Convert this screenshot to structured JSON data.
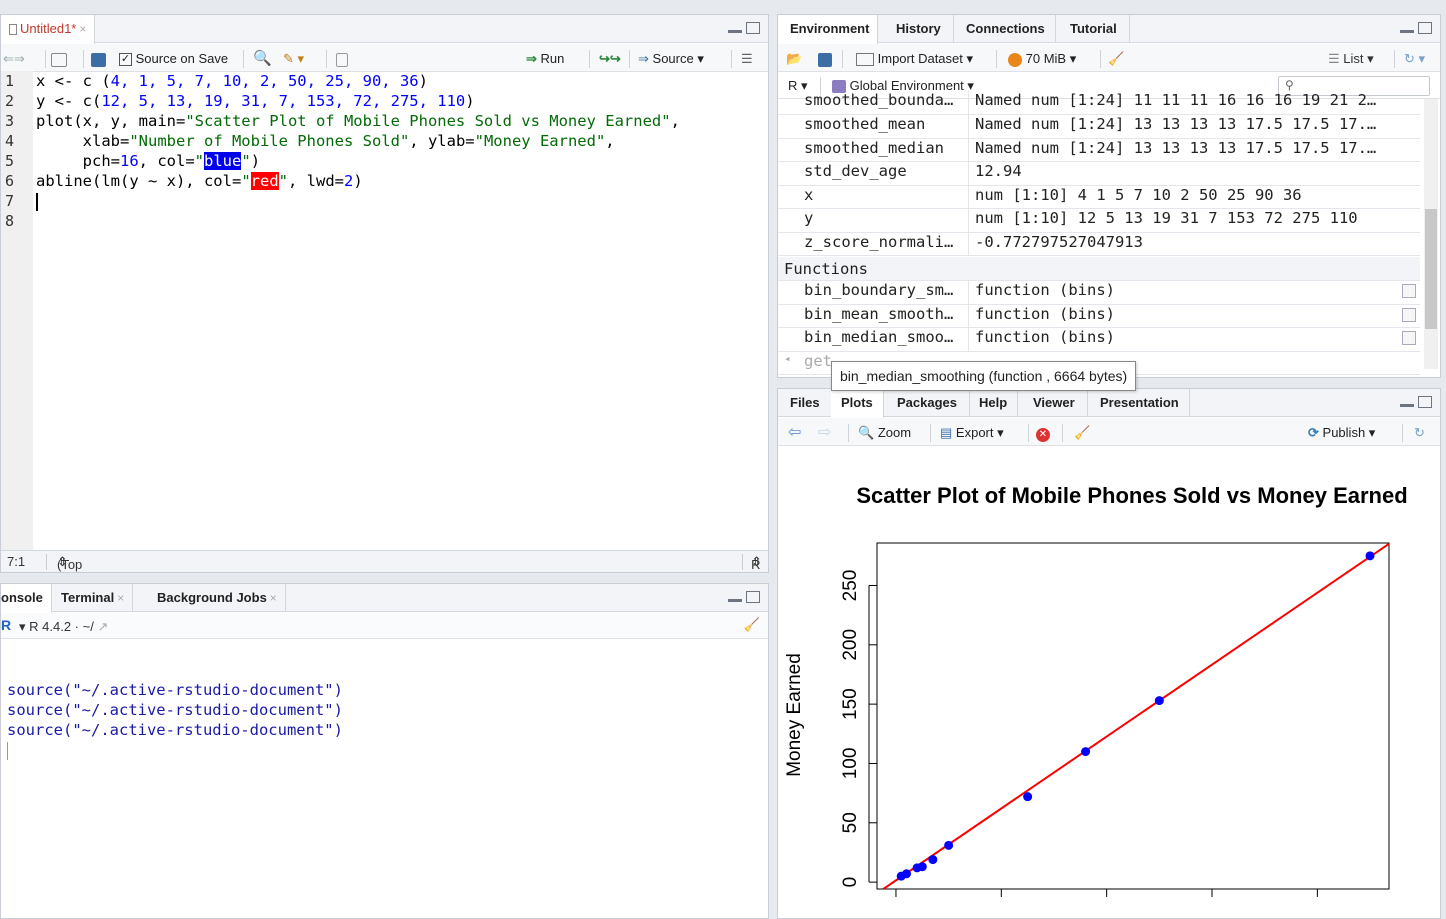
{
  "source_pane": {
    "tab_label": "Untitled1*",
    "source_on_save": "Source on Save",
    "run_label": "Run",
    "source_label": "Source",
    "line_numbers": [
      "1",
      "2",
      "3",
      "4",
      "5",
      "6",
      "7",
      "8"
    ],
    "code": {
      "l1_a": "x <- c (",
      "l1_nums": "4, 1, 5, 7, 10, 2, 50, 25, 90, 36",
      "l1_b": ")",
      "l2_a": "y <- c(",
      "l2_nums": "12, 5, 13, 19, 31, 7, 153, 72, 275, 110",
      "l2_b": ")",
      "l3_a": "plot(x, y, main=",
      "l3_str": "\"Scatter Plot of Mobile Phones Sold vs Money Earned\"",
      "l3_b": ",",
      "l4_a": "     xlab=",
      "l4_str1": "\"Number of Mobile Phones Sold\"",
      "l4_b": ", ylab=",
      "l4_str2": "\"Money Earned\"",
      "l4_c": ",",
      "l5_a": "     pch=",
      "l5_num": "16",
      "l5_b": ", col=",
      "l5_q1": "\"",
      "l5_sel": "blue",
      "l5_q2": "\"",
      "l5_c": ")",
      "l6_a": "abline(lm(y ~ x), col=",
      "l6_q1": "\"",
      "l6_sel": "red",
      "l6_q2": "\"",
      "l6_b": ", lwd=",
      "l6_num": "2",
      "l6_c": ")"
    },
    "status_position": "7:1",
    "status_scope": "(Top Level)",
    "status_type": "R Script"
  },
  "console_pane": {
    "tabs": [
      "onsole",
      "Terminal",
      "Background Jobs"
    ],
    "r_version": "R 4.4.2 · ~/",
    "lines": [
      "source(\"~/.active-rstudio-document\")",
      "source(\"~/.active-rstudio-document\")",
      "source(\"~/.active-rstudio-document\")"
    ]
  },
  "env_pane": {
    "tabs": [
      "Environment",
      "History",
      "Connections",
      "Tutorial"
    ],
    "import_dataset": "Import Dataset",
    "memory": "70 MiB",
    "list_label": "List",
    "r_label": "R",
    "global_env": "Global Environment",
    "rows": [
      {
        "name": "smoothed_bounda…",
        "value": "Named num [1:24] 11 11 11 16 16 16 19 21 2…"
      },
      {
        "name": "smoothed_mean",
        "value": "Named num [1:24] 13 13 13 13 17.5 17.5 17.…"
      },
      {
        "name": "smoothed_median",
        "value": "Named num [1:24] 13 13 13 13 17.5 17.5 17.…"
      },
      {
        "name": "std_dev_age",
        "value": "12.94"
      },
      {
        "name": "x",
        "value": "num [1:10] 4 1 5 7 10 2 50 25 90 36"
      },
      {
        "name": "y",
        "value": "num [1:10] 12 5 13 19 31 7 153 72 275 110"
      },
      {
        "name": "z_score_normali…",
        "value": "-0.772797527047913"
      }
    ],
    "functions_header": "Functions",
    "functions": [
      {
        "name": "bin_boundary_sm…",
        "value": "function (bins)"
      },
      {
        "name": "bin_mean_smooth…",
        "value": "function (bins)"
      },
      {
        "name": "bin_median_smoo…",
        "value": "function (bins)"
      }
    ],
    "partial_row_name": "get",
    "tooltip": "bin_median_smoothing (function , 6664 bytes)"
  },
  "plots_pane": {
    "tabs": [
      "Files",
      "Plots",
      "Packages",
      "Help",
      "Viewer",
      "Presentation"
    ],
    "zoom_label": "Zoom",
    "export_label": "Export",
    "publish_label": "Publish"
  },
  "chart_data": {
    "type": "scatter",
    "title": "Scatter Plot of Mobile Phones Sold vs Money Earned",
    "xlabel": "Number of Mobile Phones Sold",
    "ylabel": "Money Earned",
    "x": [
      4,
      1,
      5,
      7,
      10,
      2,
      50,
      25,
      90,
      36
    ],
    "y": [
      12,
      5,
      13,
      19,
      31,
      7,
      153,
      72,
      275,
      110
    ],
    "xlim": [
      0,
      90
    ],
    "ylim": [
      5,
      275
    ],
    "yticks": [
      "0",
      "50",
      "100",
      "150",
      "200",
      "250"
    ],
    "point_color": "#0000ff",
    "regression_line": {
      "color": "#ff0000",
      "intercept": 1.48,
      "slope": 3.03
    }
  }
}
